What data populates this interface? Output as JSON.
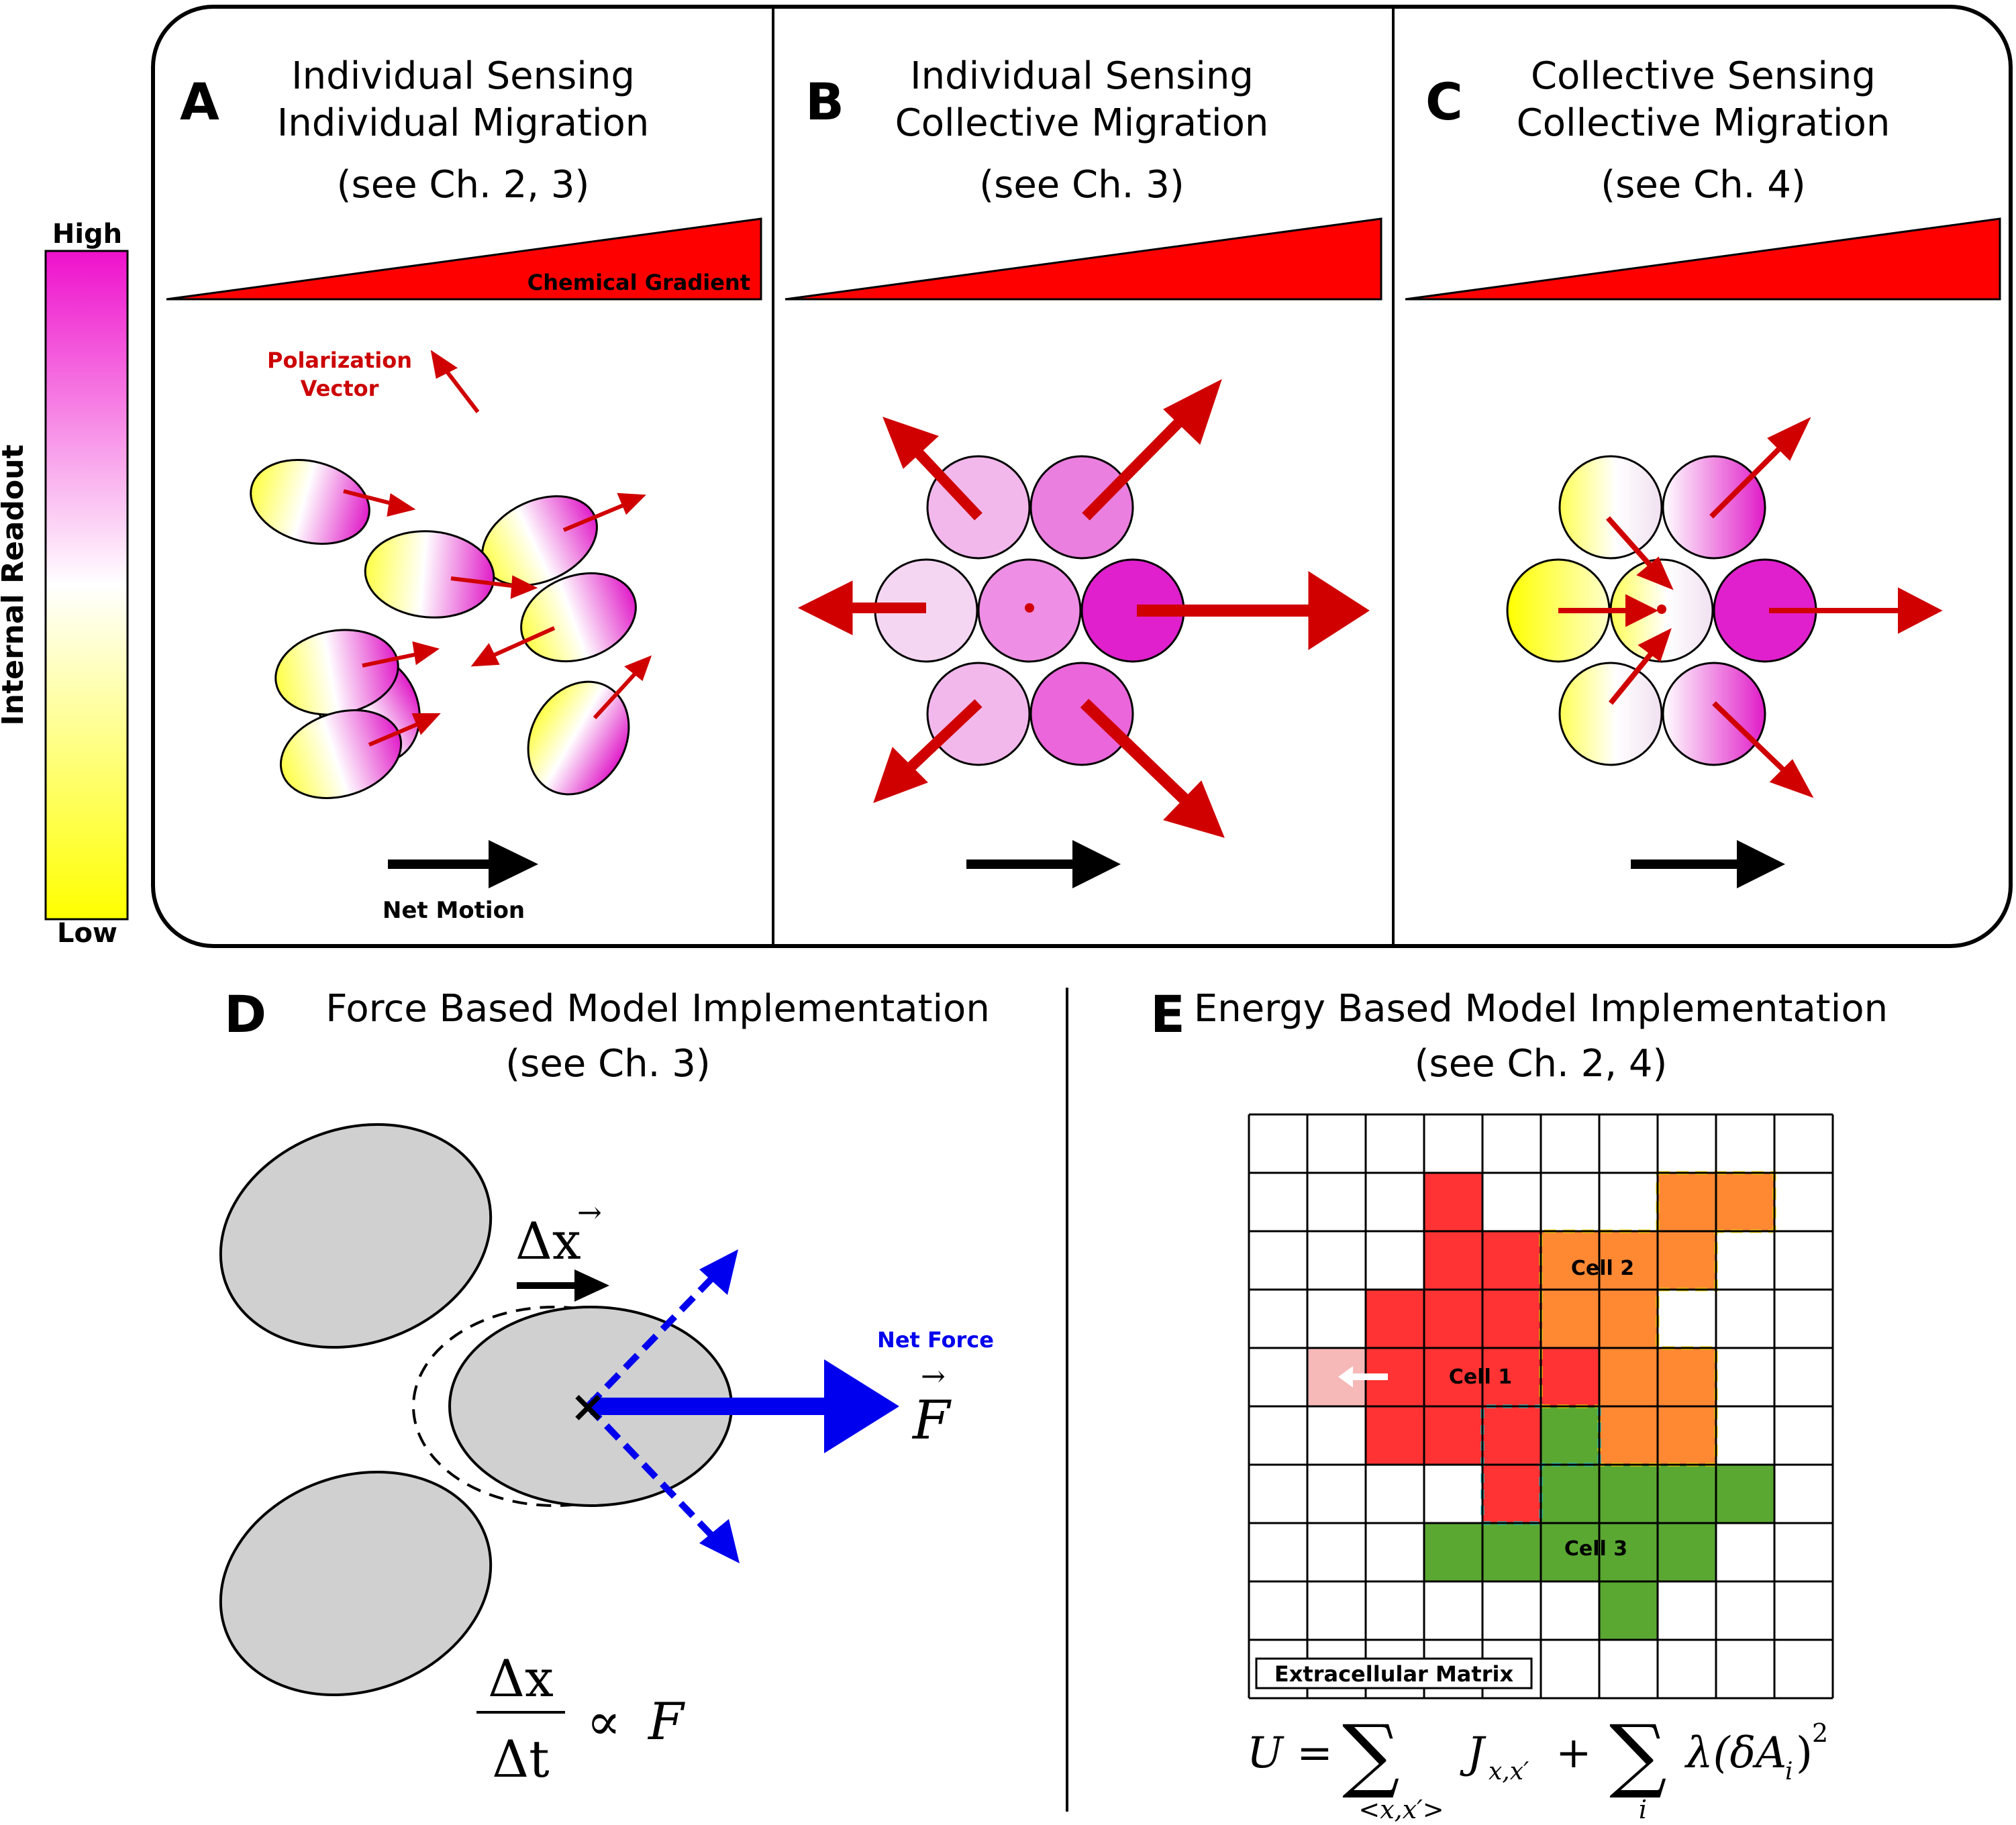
{
  "colorbar": {
    "high_label": "High",
    "low_label": "Low",
    "axis_label": "Internal Readout",
    "colors": [
      "#ffff00",
      "#ffffff",
      "#ff00cc"
    ]
  },
  "panels": {
    "A": {
      "letter": "A",
      "title_line1": "Individual Sensing",
      "title_line2": "Individual Migration",
      "ref": "(see Ch. 2, 3)",
      "gradient_label": "Chemical Gradient",
      "polarization_label_1": "Polarization",
      "polarization_label_2": "Vector",
      "net_motion_label": "Net Motion"
    },
    "B": {
      "letter": "B",
      "title_line1": "Individual Sensing",
      "title_line2": "Collective Migration",
      "ref": "(see Ch. 3)"
    },
    "C": {
      "letter": "C",
      "title_line1": "Collective Sensing",
      "title_line2": "Collective Migration",
      "ref": "(see Ch. 4)"
    },
    "D": {
      "letter": "D",
      "title_line1": "Force Based Model Implementation",
      "title_line2": "(see Ch. 3)",
      "net_force_label": "Net Force",
      "displacement_symbol": "Δx",
      "force_symbol": "F",
      "equation_numerator": "Δx",
      "equation_denominator": "Δt",
      "equation_relation": "∝",
      "equation_rhs": "F"
    },
    "E": {
      "letter": "E",
      "title_line1": "Energy Based Model Implementation",
      "title_line2": "(see Ch. 2, 4)",
      "cell1_label": "Cell 1",
      "cell2_label": "Cell 2",
      "cell3_label": "Cell 3",
      "ecm_label": "Extracellular Matrix",
      "eq_lhs": "U =",
      "eq_sum1_sub": "<x,x′>",
      "eq_term1": "J",
      "eq_term1_sub": "x,x′",
      "eq_plus": "+",
      "eq_sum2_sub": "i",
      "eq_term2": "λ(δA",
      "eq_term2_sub": "i",
      "eq_term2_end": ")",
      "eq_term2_sup": "2",
      "cell_colors": {
        "cell1": "#ff3333",
        "cell2": "#ff8833",
        "cell3": "#5aa832"
      }
    }
  }
}
